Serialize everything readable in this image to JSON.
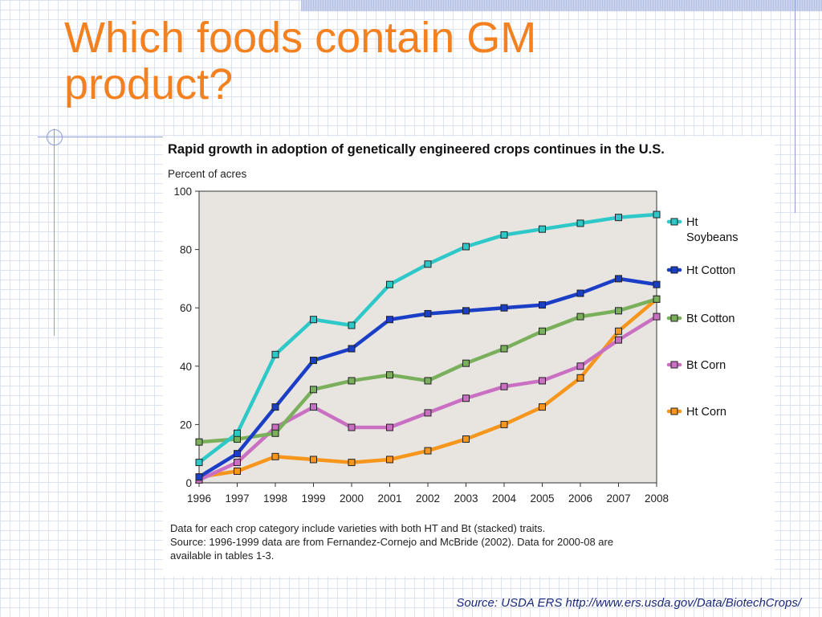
{
  "slide": {
    "title_line1": "Which foods contain GM",
    "title_line2": "product?",
    "source": "Source: USDA ERS http://www.ers.usda.gov/Data/BiotechCrops/",
    "title_color": "#f4811f"
  },
  "chart_data": {
    "type": "line",
    "title": "Rapid growth in adoption of genetically engineered crops continues in the U.S.",
    "ylabel": "Percent of acres",
    "xlabel": "",
    "x": [
      "1996",
      "1997",
      "1998",
      "1999",
      "2000",
      "2001",
      "2002",
      "2003",
      "2004",
      "2005",
      "2006",
      "2007",
      "2008"
    ],
    "ylim": [
      0,
      100
    ],
    "yticks": [
      "0",
      "20",
      "40",
      "60",
      "80",
      "100"
    ],
    "grid": false,
    "legend_position": "right",
    "plot_background": "#e8e5e1",
    "series": [
      {
        "name": "Ht Soybeans",
        "color": "#2ec8c9",
        "values": [
          7,
          17,
          44,
          56,
          54,
          68,
          75,
          81,
          85,
          87,
          89,
          91,
          92
        ]
      },
      {
        "name": "Ht Cotton",
        "color": "#1b3ec6",
        "values": [
          2,
          10,
          26,
          42,
          46,
          56,
          58,
          59,
          60,
          61,
          65,
          70,
          68
        ]
      },
      {
        "name": "Bt Cotton",
        "color": "#7aaf5c",
        "values": [
          14,
          15,
          17,
          32,
          35,
          37,
          35,
          41,
          46,
          52,
          57,
          59,
          63
        ]
      },
      {
        "name": "Bt Corn",
        "color": "#c970c3",
        "values": [
          1,
          7,
          19,
          26,
          19,
          19,
          24,
          29,
          33,
          35,
          40,
          49,
          57
        ]
      },
      {
        "name": "Ht Corn",
        "color": "#f7961c",
        "values": [
          2,
          4,
          9,
          8,
          7,
          8,
          11,
          15,
          20,
          26,
          36,
          52,
          63
        ]
      }
    ],
    "notes": [
      "Data for each crop category include varieties with both HT and Bt (stacked) traits.",
      "Source: 1996-1999 data are from Fernandez-Cornejo and McBride (2002). Data for 2000-08 are",
      "available in tables 1-3."
    ]
  }
}
